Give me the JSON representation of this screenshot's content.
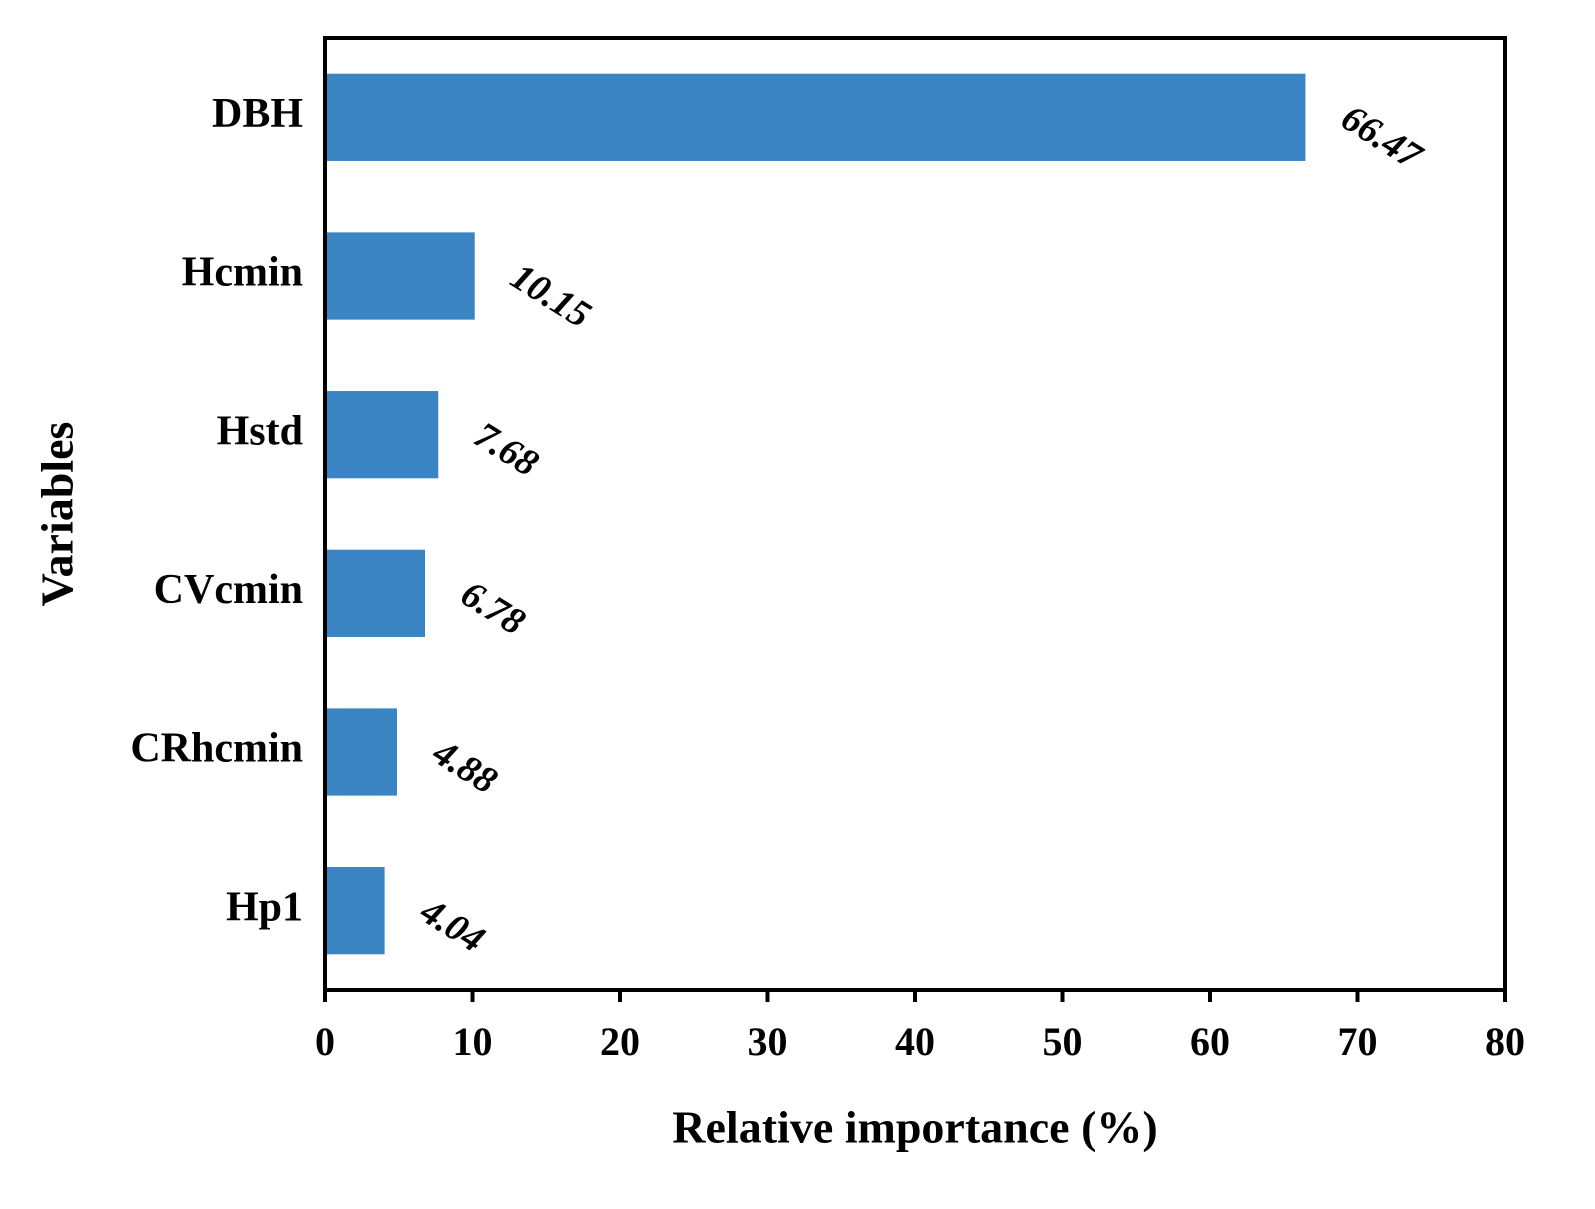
{
  "chart_data": {
    "type": "bar",
    "orientation": "horizontal",
    "x_label": "Relative importance (%)",
    "y_label": "Variables",
    "categories": [
      "DBH",
      "Hcmin",
      "Hstd",
      "CVcmin",
      "CRhcmin",
      "Hp1"
    ],
    "values": [
      66.47,
      10.15,
      7.68,
      6.78,
      4.88,
      4.04
    ],
    "color": "#3a84c4",
    "xlim": [
      0,
      80
    ],
    "xticks": [
      0,
      10,
      20,
      30,
      40,
      50,
      60,
      70,
      80
    ],
    "grid": false
  }
}
